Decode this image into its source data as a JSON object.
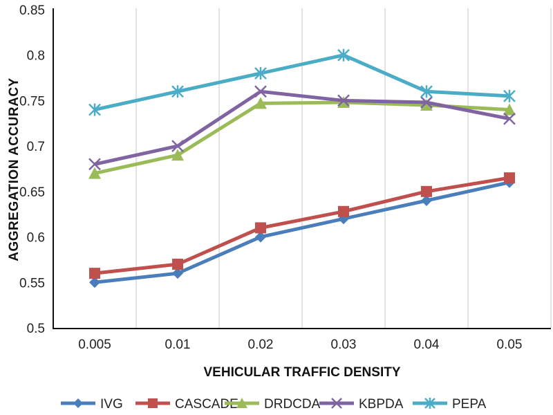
{
  "chart_data": {
    "type": "line",
    "title": "",
    "xlabel": "VEHICULAR TRAFFIC DENSITY",
    "ylabel": "AGGREGATION ACCURACY",
    "categories": [
      "0.005",
      "0.01",
      "0.02",
      "0.03",
      "0.04",
      "0.05"
    ],
    "ylim": [
      0.5,
      0.85
    ],
    "yticks": [
      "0.5",
      "0.55",
      "0.6",
      "0.65",
      "0.7",
      "0.75",
      "0.8",
      "0.85"
    ],
    "grid": "vertical",
    "legend_position": "bottom",
    "series": [
      {
        "name": "IVG",
        "marker": "diamond",
        "color": "#4a7ebb",
        "values": [
          0.55,
          0.56,
          0.6,
          0.62,
          0.64,
          0.66
        ]
      },
      {
        "name": "CASCADE",
        "marker": "square",
        "color": "#c0504d",
        "values": [
          0.56,
          0.57,
          0.61,
          0.628,
          0.65,
          0.665
        ]
      },
      {
        "name": "DRDCDA",
        "marker": "triangle",
        "color": "#9bbb59",
        "values": [
          0.67,
          0.69,
          0.747,
          0.748,
          0.745,
          0.74
        ]
      },
      {
        "name": "KBPDA",
        "marker": "x",
        "color": "#8064a2",
        "values": [
          0.68,
          0.7,
          0.76,
          0.75,
          0.748,
          0.73
        ]
      },
      {
        "name": "PEPA",
        "marker": "asterisk",
        "color": "#4bacc6",
        "values": [
          0.74,
          0.76,
          0.78,
          0.8,
          0.76,
          0.755
        ]
      }
    ]
  }
}
